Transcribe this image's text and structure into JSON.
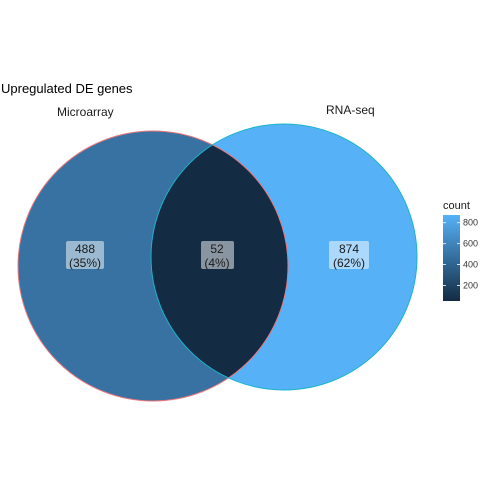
{
  "chart_data": {
    "type": "venn",
    "title": "Upregulated DE genes",
    "sets": [
      {
        "name": "Microarray",
        "only_count": 488,
        "only_percent": "(35%)"
      },
      {
        "name": "RNA-seq",
        "only_count": 874,
        "only_percent": "(62%)"
      }
    ],
    "intersection": {
      "count": 52,
      "percent": "(4%)"
    },
    "legend": {
      "title": "count",
      "ticks": [
        200,
        400,
        600,
        800
      ],
      "range": [
        52,
        874
      ],
      "low_color": "#132B43",
      "high_color": "#56B1F7"
    },
    "set_outline_colors": [
      "#E8787C",
      "#19B5CC"
    ]
  }
}
